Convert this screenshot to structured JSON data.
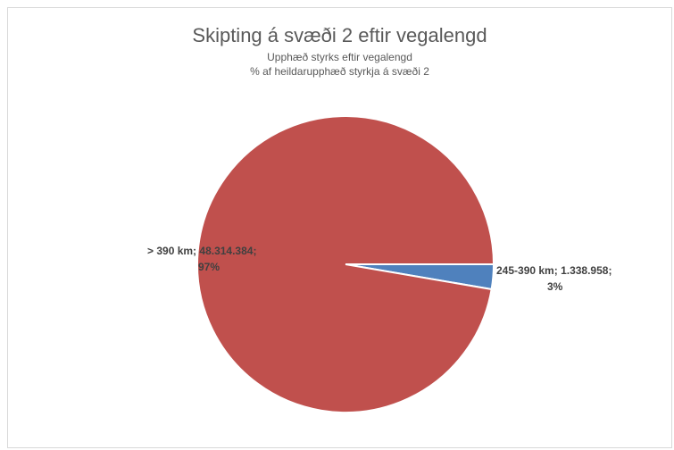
{
  "chart_data": {
    "type": "pie",
    "title": "Skipting á svæði 2 eftir vegalengd",
    "subtitle": [
      "Upphæð styrks eftir vegalengd",
      "% af heildarupphæð styrkja á svæði 2"
    ],
    "slices": [
      {
        "name": "245-390 km",
        "value": 1338958,
        "value_label": "1.338.958",
        "percent_label": "3%",
        "color": "#4f81bd"
      },
      {
        "name": "> 390 km",
        "value": 48314384,
        "value_label": "48.314.384",
        "percent_label": "97%",
        "color": "#c0504d"
      }
    ],
    "start_angle_deg": 0,
    "direction": "clockwise"
  }
}
